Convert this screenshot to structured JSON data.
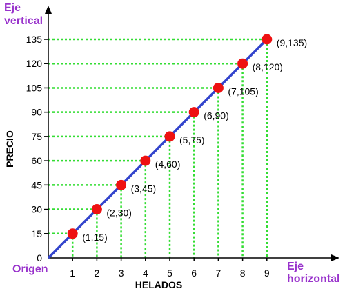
{
  "chart_data": {
    "type": "line",
    "x": [
      1,
      2,
      3,
      4,
      5,
      6,
      7,
      8,
      9
    ],
    "x_ticks": [
      "1",
      "2",
      "3",
      "4",
      "5",
      "6",
      "7",
      "8",
      "9"
    ],
    "y_ticks": [
      "0",
      "15",
      "30",
      "45",
      "60",
      "75",
      "90",
      "105",
      "120",
      "135"
    ],
    "series": [
      {
        "values": [
          15,
          30,
          45,
          60,
          75,
          90,
          105,
          120,
          135
        ],
        "line_color": "#3344cc",
        "marker_color": "#ee1111"
      }
    ],
    "point_labels": [
      "(1,15)",
      "(2,30)",
      "(3,45)",
      "(4,60)",
      "(5,75)",
      "(6,90)",
      "(7,105)",
      "(8,120)",
      "(9,135)"
    ],
    "xlabel": "HELADOS",
    "ylabel": "PRECIO",
    "xlim": [
      0,
      9
    ],
    "ylim": [
      0,
      135
    ],
    "grid": "green dotted guides from each point to both axes",
    "guide_color": "#33dd33",
    "annotations": {
      "y_axis_name_line1": "Eje",
      "y_axis_name_line2": "vertical",
      "x_axis_name_line1": "Eje",
      "x_axis_name_line2": "horizontal",
      "origin": "Origen"
    },
    "annotation_color": "#9933cc"
  }
}
